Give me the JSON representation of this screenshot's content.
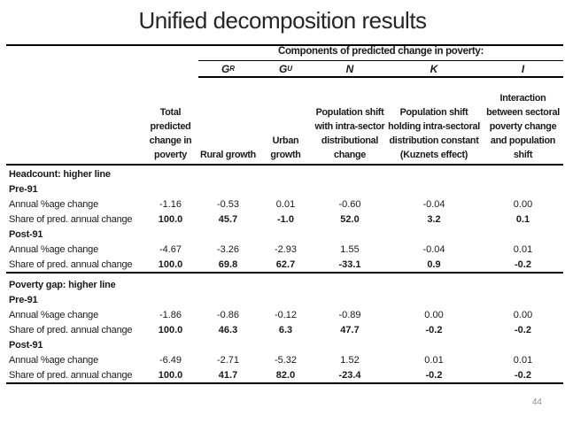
{
  "page": {
    "title": "Unified decomposition results",
    "page_number": "44"
  },
  "table": {
    "components_header": "Components of predicted change in poverty:",
    "columns": [
      {
        "symbol": "",
        "sup": "",
        "header": "Total predicted change in poverty"
      },
      {
        "symbol": "G",
        "sup": "R",
        "header": "Rural growth"
      },
      {
        "symbol": "G",
        "sup": "U",
        "header": "Urban growth"
      },
      {
        "symbol": "N",
        "sup": "",
        "header": "Population shift with intra-sector distributional change"
      },
      {
        "symbol": "K",
        "sup": "",
        "header": "Population shift holding intra-sectoral distribution constant (Kuznets effect)"
      },
      {
        "symbol": "I",
        "sup": "",
        "header": "Interaction between sectoral poverty change and population shift"
      }
    ],
    "sections": [
      {
        "heading": "Headcount: higher line",
        "groups": [
          {
            "period": "Pre-91",
            "rows": [
              {
                "label": "Annual %age change",
                "bold_values": false,
                "values": [
                  "-1.16",
                  "-0.53",
                  "0.01",
                  "-0.60",
                  "-0.04",
                  "0.00"
                ]
              },
              {
                "label": "Share of pred. annual change",
                "bold_values": true,
                "values": [
                  "100.0",
                  "45.7",
                  "-1.0",
                  "52.0",
                  "3.2",
                  "0.1"
                ]
              }
            ]
          },
          {
            "period": "Post-91",
            "rows": [
              {
                "label": "Annual %age change",
                "bold_values": false,
                "values": [
                  "-4.67",
                  "-3.26",
                  "-2.93",
                  "1.55",
                  "-0.04",
                  "0.01"
                ]
              },
              {
                "label": "Share of pred. annual change",
                "bold_values": true,
                "values": [
                  "100.0",
                  "69.8",
                  "62.7",
                  "-33.1",
                  "0.9",
                  "-0.2"
                ]
              }
            ]
          }
        ]
      },
      {
        "heading": "Poverty gap: higher line",
        "groups": [
          {
            "period": "Pre-91",
            "rows": [
              {
                "label": "Annual %age change",
                "bold_values": false,
                "values": [
                  "-1.86",
                  "-0.86",
                  "-0.12",
                  "-0.89",
                  "0.00",
                  "0.00"
                ]
              },
              {
                "label": "Share of pred. annual change",
                "bold_values": true,
                "values": [
                  "100.0",
                  "46.3",
                  "6.3",
                  "47.7",
                  "-0.2",
                  "-0.2"
                ]
              }
            ]
          },
          {
            "period": "Post-91",
            "rows": [
              {
                "label": "Annual %age change",
                "bold_values": false,
                "values": [
                  "-6.49",
                  "-2.71",
                  "-5.32",
                  "1.52",
                  "0.01",
                  "0.01"
                ]
              },
              {
                "label": "Share of pred. annual change",
                "bold_values": true,
                "values": [
                  "100.0",
                  "41.7",
                  "82.0",
                  "-23.4",
                  "-0.2",
                  "-0.2"
                ]
              }
            ]
          }
        ]
      }
    ]
  }
}
